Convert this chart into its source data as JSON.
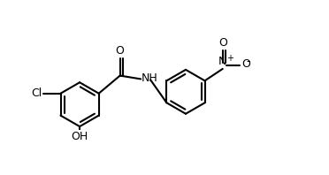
{
  "line_color": "#000000",
  "bg_color": "#ffffff",
  "lw": 1.5,
  "fs": 9,
  "figsize": [
    3.72,
    1.98
  ],
  "dpi": 100,
  "xlim": [
    -1.5,
    6.2
  ],
  "ylim": [
    -1.8,
    2.0
  ]
}
